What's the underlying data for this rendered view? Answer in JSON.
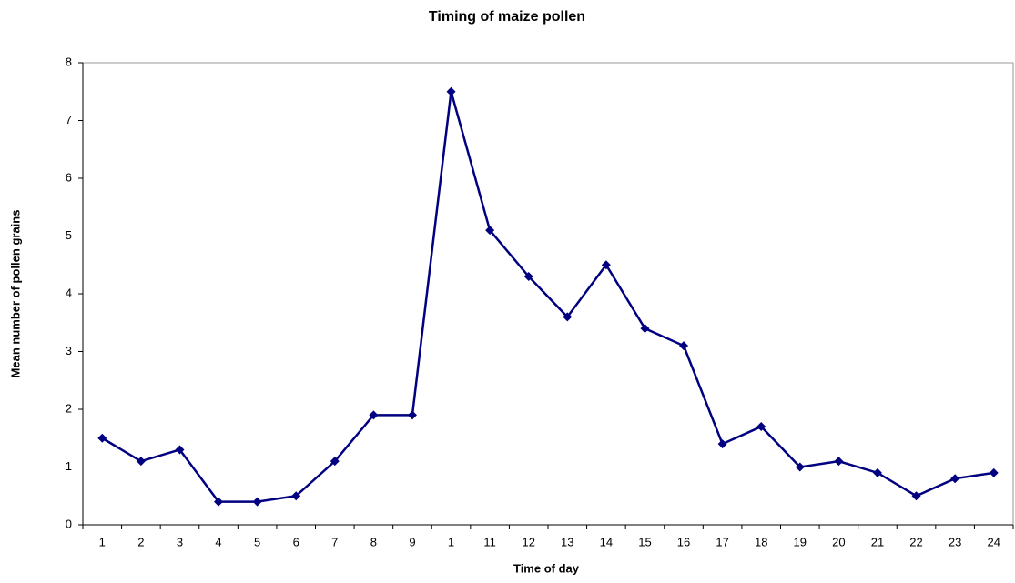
{
  "chart_data": {
    "type": "line",
    "title": "Timing of maize pollen",
    "x_label": "Time of day",
    "y_label": "Mean number of pollen grains",
    "categories": [
      "1",
      "2",
      "3",
      "4",
      "5",
      "6",
      "7",
      "8",
      "9",
      "1",
      "11",
      "12",
      "13",
      "14",
      "15",
      "16",
      "17",
      "18",
      "19",
      "20",
      "21",
      "22",
      "23",
      "24"
    ],
    "series": [
      {
        "name": "Mean number of pollen grains",
        "color": "#000080",
        "values": [
          1.5,
          1.1,
          1.3,
          0.4,
          0.4,
          0.5,
          1.1,
          1.9,
          1.9,
          7.5,
          5.1,
          4.3,
          3.6,
          4.5,
          3.4,
          3.1,
          1.4,
          1.7,
          1.0,
          1.1,
          0.9,
          0.5,
          0.8,
          0.9
        ]
      }
    ],
    "ylim": [
      0,
      8
    ],
    "yticks": [
      0,
      1,
      2,
      3,
      4,
      5,
      6,
      7,
      8
    ],
    "grid": false
  }
}
